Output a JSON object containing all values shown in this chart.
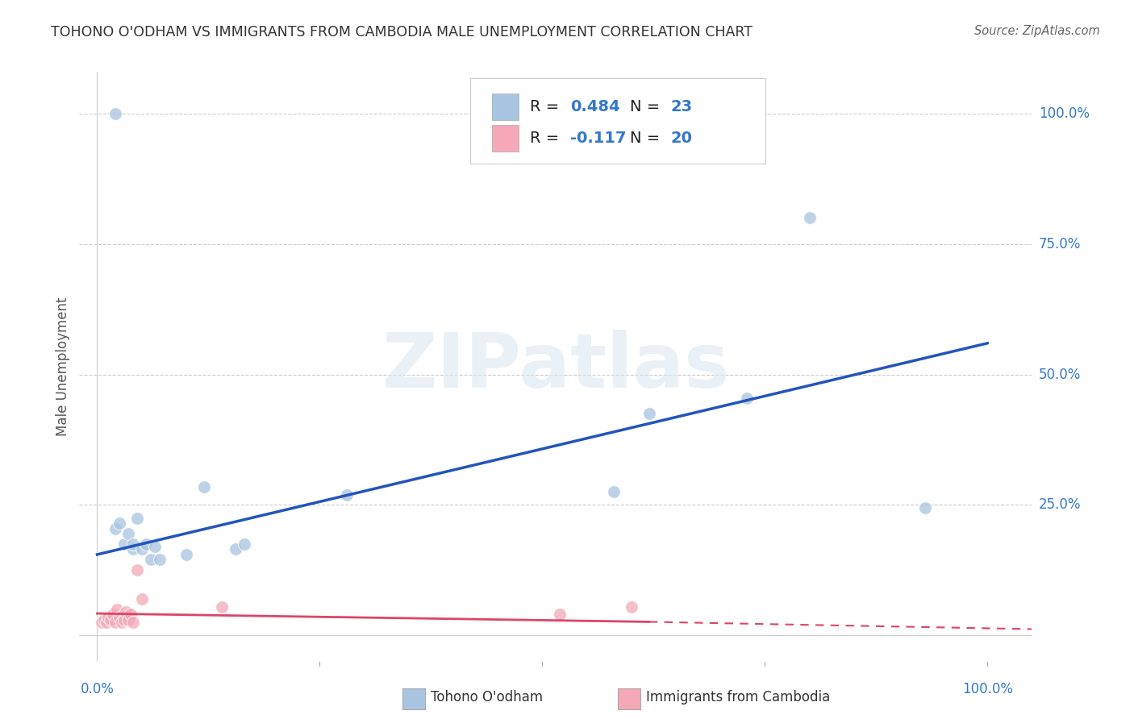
{
  "title": "TOHONO O'ODHAM VS IMMIGRANTS FROM CAMBODIA MALE UNEMPLOYMENT CORRELATION CHART",
  "source": "Source: ZipAtlas.com",
  "ylabel": "Male Unemployment",
  "ytick_labels": [
    "25.0%",
    "50.0%",
    "75.0%",
    "100.0%"
  ],
  "ytick_vals": [
    0.25,
    0.5,
    0.75,
    1.0
  ],
  "xtick_labels": [
    "0.0%",
    "100.0%"
  ],
  "xtick_vals": [
    0.0,
    1.0
  ],
  "xlim": [
    -0.02,
    1.05
  ],
  "ylim": [
    -0.05,
    1.08
  ],
  "blue_color": "#a8c4e0",
  "pink_color": "#f4a8b8",
  "line_blue": "#2255bb",
  "line_pink": "#dd4466",
  "tohono_x": [
    0.02,
    0.025,
    0.03,
    0.035,
    0.04,
    0.04,
    0.045,
    0.05,
    0.055,
    0.06,
    0.065,
    0.07,
    0.12,
    0.155,
    0.165,
    0.28,
    0.58,
    0.62,
    0.73,
    0.8,
    0.93,
    0.02,
    0.1
  ],
  "tohono_y": [
    0.205,
    0.215,
    0.175,
    0.195,
    0.165,
    0.175,
    0.225,
    0.165,
    0.175,
    0.145,
    0.17,
    0.145,
    0.285,
    0.165,
    0.175,
    0.27,
    0.275,
    0.425,
    0.455,
    0.8,
    0.245,
    1.0,
    0.155
  ],
  "cambodia_x": [
    0.005,
    0.008,
    0.01,
    0.012,
    0.015,
    0.018,
    0.02,
    0.022,
    0.025,
    0.028,
    0.03,
    0.032,
    0.035,
    0.038,
    0.04,
    0.045,
    0.05,
    0.14,
    0.52,
    0.6
  ],
  "cambodia_y": [
    0.025,
    0.03,
    0.025,
    0.035,
    0.03,
    0.04,
    0.025,
    0.05,
    0.035,
    0.025,
    0.03,
    0.045,
    0.03,
    0.04,
    0.025,
    0.125,
    0.07,
    0.055,
    0.04,
    0.055
  ],
  "blue_line": [
    [
      0.0,
      0.155
    ],
    [
      1.0,
      0.56
    ]
  ],
  "pink_line_solid": [
    [
      0.0,
      0.042
    ],
    [
      0.62,
      0.026
    ]
  ],
  "pink_line_dash": [
    [
      0.62,
      0.026
    ],
    [
      1.05,
      0.012
    ]
  ],
  "scatter_size": 130,
  "watermark_text": "ZIPatlas",
  "legend_blue_r": "0.484",
  "legend_blue_n": "23",
  "legend_pink_r": "-0.117",
  "legend_pink_n": "20",
  "legend_label_blue": "Tohono O'odham",
  "legend_label_pink": "Immigrants from Cambodia"
}
